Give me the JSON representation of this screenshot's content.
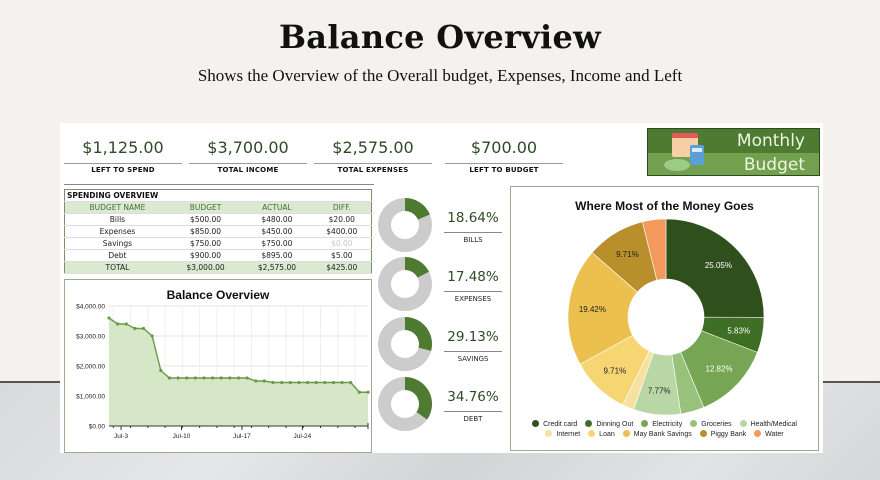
{
  "page": {
    "title": "Balance Overview",
    "subtitle": "Shows the Overview of the Overall budget, Expenses, Income and Left"
  },
  "kpis": [
    {
      "value": "$1,125.00",
      "label": "LEFT TO SPEND"
    },
    {
      "value": "$3,700.00",
      "label": "TOTAL INCOME"
    },
    {
      "value": "$2,575.00",
      "label": "TOTAL EXPENSES"
    },
    {
      "value": "$700.00",
      "label": "LEFT TO BUDGET"
    }
  ],
  "logo": {
    "line1": "Monthly",
    "line2": "Budget",
    "icon": "calendar-calculator-cash-icon"
  },
  "spending_overview": {
    "title": "SPENDING OVERVIEW",
    "columns": [
      "BUDGET NAME",
      "BUDGET",
      "ACTUAL",
      "DIFF."
    ],
    "rows": [
      [
        "Bills",
        "$500.00",
        "$480.00",
        "$20.00"
      ],
      [
        "Expenses",
        "$850.00",
        "$450.00",
        "$400.00"
      ],
      [
        "Savings",
        "$750.00",
        "$750.00",
        "$0.00"
      ],
      [
        "Debt",
        "$900.00",
        "$895.00",
        "$5.00"
      ]
    ],
    "total": [
      "TOTAL",
      "$3,000.00",
      "$2,575.00",
      "$425.00"
    ]
  },
  "mini_donuts": [
    {
      "pct": "18.64%",
      "label": "BILLS",
      "value": 18.64
    },
    {
      "pct": "17.48%",
      "label": "EXPENSES",
      "value": 17.48
    },
    {
      "pct": "29.13%",
      "label": "SAVINGS",
      "value": 29.13
    },
    {
      "pct": "34.76%",
      "label": "DEBT",
      "value": 34.76
    }
  ],
  "colors": {
    "accent_dark": "#2f4a26",
    "accent": "#4e7a31",
    "donut_gray": "#cccccc",
    "area_fill": "#d6e7c8",
    "line": "#6a9a4b"
  },
  "chart_data": [
    {
      "type": "area",
      "title": "Balance Overview",
      "xlabel": "",
      "ylabel": "",
      "ylim": [
        0,
        4000
      ],
      "yticks": [
        "$0.00",
        "$1,000.00",
        "$2,000.00",
        "$3,000.00",
        "$4,000.00"
      ],
      "xtick_labels": [
        "Jul-3",
        "Jul-10",
        "Jul-17",
        "Jul-24"
      ],
      "grid": true,
      "x": [
        "Jul-1",
        "Jul-2",
        "Jul-3",
        "Jul-4",
        "Jul-5",
        "Jul-6",
        "Jul-7",
        "Jul-8",
        "Jul-9",
        "Jul-10",
        "Jul-11",
        "Jul-12",
        "Jul-13",
        "Jul-14",
        "Jul-15",
        "Jul-16",
        "Jul-17",
        "Jul-18",
        "Jul-19",
        "Jul-20",
        "Jul-21",
        "Jul-22",
        "Jul-23",
        "Jul-24",
        "Jul-25",
        "Jul-26",
        "Jul-27",
        "Jul-28",
        "Jul-29",
        "Jul-30",
        "Jul-31"
      ],
      "values": [
        3600,
        3400,
        3400,
        3250,
        3250,
        3000,
        1850,
        1600,
        1600,
        1600,
        1600,
        1600,
        1600,
        1600,
        1600,
        1600,
        1600,
        1500,
        1500,
        1450,
        1450,
        1450,
        1450,
        1450,
        1450,
        1450,
        1450,
        1450,
        1450,
        1125,
        1125
      ]
    },
    {
      "type": "pie",
      "title": "Where Most of the Money Goes",
      "donut": true,
      "legend_position": "bottom",
      "categories": [
        "Credit card",
        "Dinning Out",
        "Electricity",
        "Groceries",
        "Health/Medical",
        "Internet",
        "Loan",
        "May Bank Savings",
        "Piggy Bank",
        "Water"
      ],
      "values": [
        25.05,
        5.83,
        12.82,
        3.88,
        7.77,
        1.94,
        9.71,
        19.42,
        9.71,
        3.87
      ],
      "labels": [
        "25.05%",
        "5.83%",
        "12.82%",
        "",
        "7.77%",
        "",
        "9.71%",
        "19.42%",
        "9.71%",
        ""
      ],
      "colors": [
        "#2f4f1d",
        "#3f6e25",
        "#76a553",
        "#98c27c",
        "#b9d7a5",
        "#f7e1a0",
        "#f6d672",
        "#ebc04f",
        "#b98f2c",
        "#f19a5b"
      ]
    }
  ]
}
